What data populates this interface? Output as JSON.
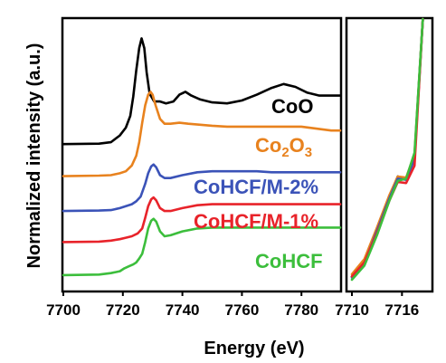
{
  "chart_data": [
    {
      "type": "line",
      "panel": "main",
      "xlabel": "Energy (eV)",
      "ylabel": "Normalized intensity (a.u.)",
      "xlim": [
        7700,
        7793
      ],
      "x_ticks": [
        "7700",
        "7720",
        "7740",
        "7760",
        "7780"
      ],
      "series": [
        {
          "name": "CoO",
          "color": "#000000",
          "points": [
            [
              7700,
              0.46
            ],
            [
              7712,
              0.465
            ],
            [
              7716,
              0.48
            ],
            [
              7719,
              0.55
            ],
            [
              7721,
              0.63
            ],
            [
              7722.5,
              0.75
            ],
            [
              7723.5,
              0.95
            ],
            [
              7724.5,
              1.22
            ],
            [
              7725.5,
              1.45
            ],
            [
              7726.3,
              1.55
            ],
            [
              7727.2,
              1.45
            ],
            [
              7728,
              1.2
            ],
            [
              7729,
              0.98
            ],
            [
              7730.5,
              0.9
            ],
            [
              7732.5,
              0.9
            ],
            [
              7734.5,
              0.88
            ],
            [
              7737,
              0.9
            ],
            [
              7739,
              0.97
            ],
            [
              7741,
              1.0
            ],
            [
              7743,
              0.96
            ],
            [
              7746,
              0.92
            ],
            [
              7750,
              0.89
            ],
            [
              7755,
              0.88
            ],
            [
              7760,
              0.91
            ],
            [
              7765,
              0.97
            ],
            [
              7770,
              1.04
            ],
            [
              7774,
              1.08
            ],
            [
              7778,
              1.05
            ],
            [
              7782,
              0.99
            ],
            [
              7786,
              0.96
            ],
            [
              7790,
              0.96
            ],
            [
              7793,
              0.96
            ]
          ]
        },
        {
          "name": "Co2O3",
          "color": "#e8821e",
          "points": [
            [
              7700,
              0.13
            ],
            [
              7712,
              0.135
            ],
            [
              7716,
              0.14
            ],
            [
              7719,
              0.16
            ],
            [
              7721,
              0.18
            ],
            [
              7723,
              0.24
            ],
            [
              7724.5,
              0.34
            ],
            [
              7725.5,
              0.48
            ],
            [
              7726.5,
              0.68
            ],
            [
              7727.5,
              0.86
            ],
            [
              7728.5,
              0.97
            ],
            [
              7729.3,
              1.0
            ],
            [
              7730,
              0.97
            ],
            [
              7731,
              0.86
            ],
            [
              7732.5,
              0.72
            ],
            [
              7734,
              0.67
            ],
            [
              7736,
              0.67
            ],
            [
              7739,
              0.68
            ],
            [
              7742,
              0.67
            ],
            [
              7746,
              0.66
            ],
            [
              7750,
              0.65
            ],
            [
              7755,
              0.64
            ],
            [
              7760,
              0.64
            ],
            [
              7765,
              0.64
            ],
            [
              7770,
              0.64
            ],
            [
              7775,
              0.64
            ],
            [
              7780,
              0.64
            ],
            [
              7785,
              0.62
            ],
            [
              7790,
              0.6
            ],
            [
              7793,
              0.6
            ]
          ]
        },
        {
          "name": "CoHCF/M-2%",
          "color": "#3b53b8",
          "points": [
            [
              7700,
              -0.23
            ],
            [
              7712,
              -0.225
            ],
            [
              7716,
              -0.22
            ],
            [
              7719,
              -0.2
            ],
            [
              7721,
              -0.18
            ],
            [
              7723,
              -0.16
            ],
            [
              7724.5,
              -0.13
            ],
            [
              7726,
              -0.08
            ],
            [
              7727.5,
              0.05
            ],
            [
              7728.5,
              0.16
            ],
            [
              7729.5,
              0.23
            ],
            [
              7730.3,
              0.25
            ],
            [
              7731.2,
              0.22
            ],
            [
              7732.5,
              0.14
            ],
            [
              7734,
              0.11
            ],
            [
              7736,
              0.11
            ],
            [
              7740,
              0.14
            ],
            [
              7745,
              0.17
            ],
            [
              7750,
              0.18
            ],
            [
              7755,
              0.18
            ],
            [
              7760,
              0.18
            ],
            [
              7765,
              0.18
            ],
            [
              7770,
              0.17
            ],
            [
              7775,
              0.17
            ],
            [
              7780,
              0.17
            ],
            [
              7785,
              0.17
            ],
            [
              7790,
              0.17
            ],
            [
              7793,
              0.17
            ]
          ]
        },
        {
          "name": "CoHCF/M-1%",
          "color": "#e8232a",
          "points": [
            [
              7700,
              -0.55
            ],
            [
              7712,
              -0.545
            ],
            [
              7716,
              -0.535
            ],
            [
              7719,
              -0.52
            ],
            [
              7721,
              -0.505
            ],
            [
              7723,
              -0.49
            ],
            [
              7725,
              -0.46
            ],
            [
              7726.5,
              -0.41
            ],
            [
              7727.5,
              -0.3
            ],
            [
              7728.5,
              -0.18
            ],
            [
              7729.5,
              -0.11
            ],
            [
              7730.3,
              -0.09
            ],
            [
              7731.2,
              -0.12
            ],
            [
              7732.5,
              -0.2
            ],
            [
              7734,
              -0.23
            ],
            [
              7736,
              -0.23
            ],
            [
              7740,
              -0.2
            ],
            [
              7745,
              -0.17
            ],
            [
              7750,
              -0.16
            ],
            [
              7755,
              -0.16
            ],
            [
              7760,
              -0.16
            ],
            [
              7765,
              -0.16
            ],
            [
              7770,
              -0.16
            ],
            [
              7775,
              -0.16
            ],
            [
              7780,
              -0.16
            ],
            [
              7785,
              -0.16
            ],
            [
              7790,
              -0.16
            ],
            [
              7793,
              -0.16
            ]
          ]
        },
        {
          "name": "CoHCF",
          "color": "#3cbe3c",
          "points": [
            [
              7700,
              -0.89
            ],
            [
              7712,
              -0.885
            ],
            [
              7716,
              -0.87
            ],
            [
              7719,
              -0.85
            ],
            [
              7720.5,
              -0.82
            ],
            [
              7722,
              -0.8
            ],
            [
              7723.5,
              -0.78
            ],
            [
              7724.5,
              -0.76
            ],
            [
              7725.5,
              -0.72
            ],
            [
              7726.5,
              -0.67
            ],
            [
              7727.5,
              -0.55
            ],
            [
              7728.5,
              -0.41
            ],
            [
              7729.5,
              -0.33
            ],
            [
              7730.3,
              -0.31
            ],
            [
              7731.2,
              -0.34
            ],
            [
              7732.5,
              -0.44
            ],
            [
              7734,
              -0.49
            ],
            [
              7736,
              -0.48
            ],
            [
              7740,
              -0.44
            ],
            [
              7745,
              -0.41
            ],
            [
              7750,
              -0.4
            ],
            [
              7755,
              -0.4
            ],
            [
              7760,
              -0.4
            ],
            [
              7765,
              -0.4
            ],
            [
              7770,
              -0.4
            ],
            [
              7775,
              -0.4
            ],
            [
              7780,
              -0.4
            ],
            [
              7785,
              -0.4
            ],
            [
              7790,
              -0.4
            ],
            [
              7793,
              -0.4
            ]
          ]
        }
      ]
    },
    {
      "type": "line",
      "panel": "zoom",
      "xlim": [
        7710,
        7719
      ],
      "x_ticks": [
        "7710",
        "7716"
      ],
      "series": [
        {
          "name": "CoO",
          "color": "#000000",
          "points": [
            [
              7710,
              -0.92
            ],
            [
              7711.5,
              -0.78
            ],
            [
              7713,
              -0.48
            ],
            [
              7714.5,
              -0.18
            ],
            [
              7715.5,
              0.0
            ],
            [
              7716.5,
              -0.02
            ],
            [
              7717.5,
              0.18
            ],
            [
              7718.5,
              1.5
            ]
          ]
        },
        {
          "name": "Co2O3",
          "color": "#e8821e",
          "points": [
            [
              7710,
              -0.9
            ],
            [
              7711.5,
              -0.76
            ],
            [
              7713,
              -0.47
            ],
            [
              7714.5,
              -0.17
            ],
            [
              7715.5,
              0.0
            ],
            [
              7716.5,
              -0.01
            ],
            [
              7717.5,
              0.2
            ],
            [
              7718.5,
              1.5
            ]
          ]
        },
        {
          "name": "CoHCF/M-2%",
          "color": "#3b53b8",
          "points": [
            [
              7710,
              -0.93
            ],
            [
              7711.5,
              -0.8
            ],
            [
              7713,
              -0.5
            ],
            [
              7714.5,
              -0.2
            ],
            [
              7715.5,
              -0.02
            ],
            [
              7716.5,
              -0.03
            ],
            [
              7717.5,
              0.16
            ],
            [
              7718.5,
              1.5
            ]
          ]
        },
        {
          "name": "CoHCF/M-1%",
          "color": "#e8232a",
          "points": [
            [
              7710,
              -0.92
            ],
            [
              7711.5,
              -0.79
            ],
            [
              7713,
              -0.52
            ],
            [
              7714.5,
              -0.22
            ],
            [
              7715.5,
              -0.05
            ],
            [
              7716.5,
              -0.06
            ],
            [
              7717.5,
              0.1
            ],
            [
              7718.5,
              1.5
            ]
          ]
        },
        {
          "name": "CoHCF",
          "color": "#3cbe3c",
          "points": [
            [
              7710,
              -0.95
            ],
            [
              7711.5,
              -0.82
            ],
            [
              7713,
              -0.54
            ],
            [
              7714.5,
              -0.22
            ],
            [
              7715.5,
              -0.04
            ],
            [
              7716.5,
              -0.02
            ],
            [
              7717.5,
              0.22
            ],
            [
              7718.5,
              1.5
            ]
          ]
        }
      ]
    }
  ]
}
